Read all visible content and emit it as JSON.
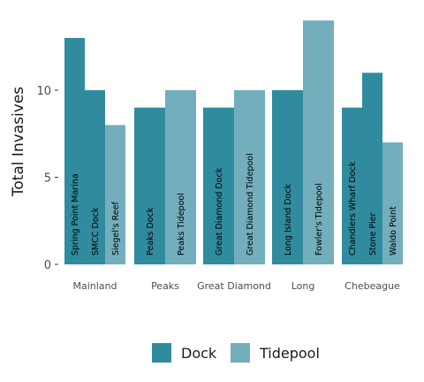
{
  "chart_data": {
    "type": "bar",
    "ylabel": "Total Invasives",
    "xlabel": "",
    "ylim": [
      0,
      14
    ],
    "yticks": [
      0,
      5,
      10
    ],
    "grid": false,
    "legend_position": "bottom",
    "colors": {
      "Dock": "#318b9e",
      "Tidepool": "#73aebd"
    },
    "series": [
      {
        "name": "Dock"
      },
      {
        "name": "Tidepool"
      }
    ],
    "groups": [
      {
        "name": "Mainland",
        "bars": [
          {
            "label": "Spring Point Marina",
            "value": 13,
            "type": "Dock"
          },
          {
            "label": "SMCC Dock",
            "value": 10,
            "type": "Dock"
          },
          {
            "label": "Siegel's Reef",
            "value": 8,
            "type": "Tidepool"
          }
        ]
      },
      {
        "name": "Peaks",
        "bars": [
          {
            "label": "Peaks Dock",
            "value": 9,
            "type": "Dock"
          },
          {
            "label": "Peaks Tidepool",
            "value": 10,
            "type": "Tidepool"
          }
        ]
      },
      {
        "name": "Great Diamond",
        "bars": [
          {
            "label": "Great Diamond Dock",
            "value": 9,
            "type": "Dock"
          },
          {
            "label": "Great Diamond Tidepool",
            "value": 10,
            "type": "Tidepool"
          }
        ]
      },
      {
        "name": "Long",
        "bars": [
          {
            "label": "Long Island Dock",
            "value": 10,
            "type": "Dock"
          },
          {
            "label": "Fowler's Tidepool",
            "value": 14,
            "type": "Tidepool"
          }
        ]
      },
      {
        "name": "Chebeague",
        "bars": [
          {
            "label": "Chandlers Wharf Dock",
            "value": 9,
            "type": "Dock"
          },
          {
            "label": "Stone Pier",
            "value": 11,
            "type": "Dock"
          },
          {
            "label": "Waldo Point",
            "value": 7,
            "type": "Tidepool"
          }
        ]
      }
    ]
  }
}
